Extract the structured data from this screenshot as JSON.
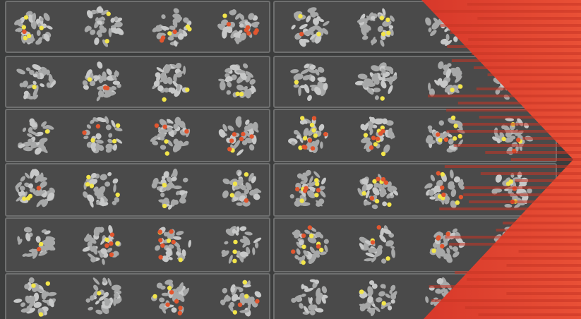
{
  "image": {
    "description_free": true,
    "colors": {
      "background": "#3c3d3d",
      "panel": "#4a4a4a",
      "panel_border": "#6e6f6f",
      "chromosome": "#a7a8a8",
      "chromosome_light": "#c7c8c8",
      "yellow_foci": "#f2e54a",
      "red_foci": "#e2562f",
      "arrow_red": "#e4412a",
      "arrow_red_dark": "#c73524"
    },
    "grid": {
      "rows": 6,
      "left_columns": 4,
      "right_columns": 4
    },
    "rows": [
      {
        "left": [
          {
            "yellow": 5,
            "red": 1
          },
          {
            "yellow": 2,
            "red": 0
          },
          {
            "yellow": 3,
            "red": 3
          },
          {
            "yellow": 1,
            "red": 6
          }
        ],
        "right": [
          {
            "yellow": 2,
            "red": 1
          },
          {
            "yellow": 4,
            "red": 0
          },
          {
            "yellow": 0,
            "red": 0
          },
          {
            "yellow": 0,
            "red": 0
          }
        ]
      },
      {
        "left": [
          {
            "yellow": 1,
            "red": 0
          },
          {
            "yellow": 1,
            "red": 2
          },
          {
            "yellow": 2,
            "red": 0
          },
          {
            "yellow": 2,
            "red": 0
          }
        ],
        "right": [
          {
            "yellow": 1,
            "red": 0
          },
          {
            "yellow": 1,
            "red": 0
          },
          {
            "yellow": 2,
            "red": 0
          },
          {
            "yellow": 0,
            "red": 0
          }
        ]
      },
      {
        "left": [
          {
            "yellow": 1,
            "red": 0
          },
          {
            "yellow": 3,
            "red": 2
          },
          {
            "yellow": 2,
            "red": 3
          },
          {
            "yellow": 1,
            "red": 6
          }
        ],
        "right": [
          {
            "yellow": 6,
            "red": 6
          },
          {
            "yellow": 6,
            "red": 5
          },
          {
            "yellow": 5,
            "red": 2
          },
          {
            "yellow": 3,
            "red": 2
          }
        ]
      },
      {
        "left": [
          {
            "yellow": 3,
            "red": 1
          },
          {
            "yellow": 4,
            "red": 0
          },
          {
            "yellow": 3,
            "red": 0
          },
          {
            "yellow": 3,
            "red": 1
          }
        ],
        "right": [
          {
            "yellow": 5,
            "red": 4
          },
          {
            "yellow": 5,
            "red": 4
          },
          {
            "yellow": 4,
            "red": 4
          },
          {
            "yellow": 3,
            "red": 2
          }
        ]
      },
      {
        "left": [
          {
            "yellow": 1,
            "red": 1
          },
          {
            "yellow": 2,
            "red": 4
          },
          {
            "yellow": 3,
            "red": 6
          },
          {
            "yellow": 3,
            "red": 0
          }
        ],
        "right": [
          {
            "yellow": 5,
            "red": 4
          },
          {
            "yellow": 2,
            "red": 2
          },
          {
            "yellow": 1,
            "red": 4
          },
          {
            "yellow": 0,
            "red": 0
          }
        ]
      },
      {
        "left": [
          {
            "yellow": 3,
            "red": 0
          },
          {
            "yellow": 1,
            "red": 0
          },
          {
            "yellow": 2,
            "red": 5
          },
          {
            "yellow": 3,
            "red": 2
          }
        ],
        "right": [
          {
            "yellow": 0,
            "red": 0
          },
          {
            "yellow": 2,
            "red": 0
          },
          {
            "yellow": 1,
            "red": 0
          },
          {
            "yellow": 0,
            "red": 0
          }
        ]
      }
    ]
  }
}
